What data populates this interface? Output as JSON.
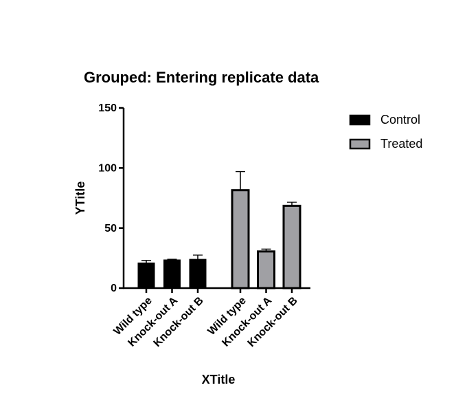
{
  "chart_data": {
    "type": "bar",
    "title": "Grouped: Entering replicate data",
    "x_label": "XTitle",
    "y_label": "YTitle",
    "categories": [
      "Wild type",
      "Knock-out A",
      "Knock-out B"
    ],
    "series": [
      {
        "name": "Control",
        "color": "#000000",
        "values": [
          21,
          23.5,
          24
        ],
        "errors": [
          2,
          0.5,
          3.5
        ]
      },
      {
        "name": "Treated",
        "color": "#a0a0a4",
        "values": [
          81.5,
          30.5,
          68.5
        ],
        "errors": [
          15.5,
          2,
          3
        ]
      }
    ],
    "ylim": [
      0,
      150
    ],
    "yticks": [
      0,
      50,
      100,
      150
    ],
    "legend": "top-right"
  }
}
